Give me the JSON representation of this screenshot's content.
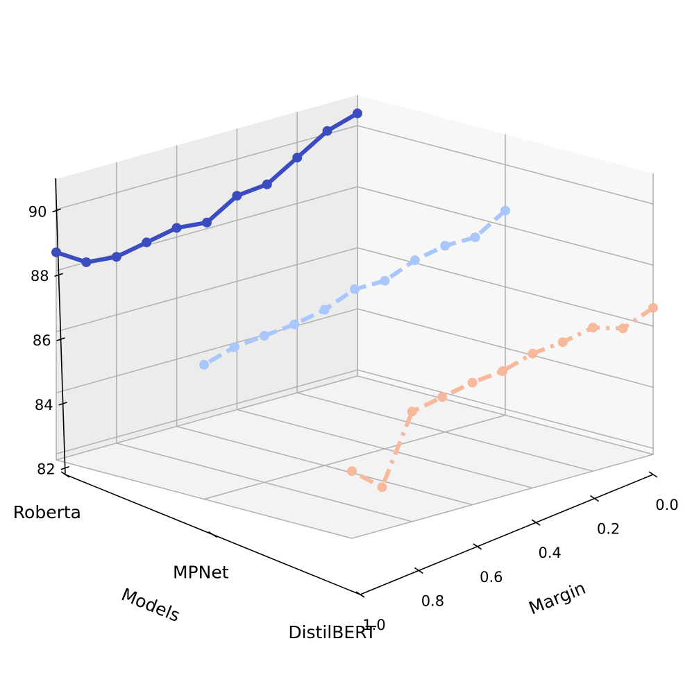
{
  "chart_data": {
    "type": "line",
    "projection": "3d",
    "xlabel": "Margin",
    "ylabel": "Models",
    "zlabel": "",
    "x_ticks": [
      "0.0",
      "0.2",
      "0.4",
      "0.6",
      "0.8",
      "1.0"
    ],
    "z_ticks": [
      "82",
      "84",
      "86",
      "88",
      "90"
    ],
    "categories": [
      "Roberta",
      "MPNet",
      "DistilBERT"
    ],
    "xlim": [
      0,
      1
    ],
    "zlim": [
      81.8,
      91
    ],
    "grid": true,
    "x": [
      0.0,
      0.1,
      0.2,
      0.3,
      0.4,
      0.5,
      0.6,
      0.7,
      0.8,
      0.9,
      1.0
    ],
    "series": [
      {
        "name": "Roberta",
        "color": "#3b4cc0",
        "linestyle": "solid",
        "values": [
          90.4,
          90.1,
          89.5,
          88.9,
          88.8,
          88.2,
          88.3,
          88.1,
          87.9,
          88.0,
          88.6
        ]
      },
      {
        "name": "MPNet",
        "color": "#aac7fd",
        "linestyle": "dashed",
        "values": [
          88.5,
          87.9,
          87.9,
          87.7,
          87.3,
          87.3,
          86.9,
          86.7,
          86.6,
          86.5,
          86.2
        ]
      },
      {
        "name": "DistilBERT",
        "color": "#f7b89c",
        "linestyle": "dashdot",
        "values": [
          86.6,
          86.2,
          86.5,
          86.3,
          86.2,
          85.9,
          85.8,
          85.6,
          85.4,
          83.2,
          84.0
        ]
      }
    ]
  }
}
